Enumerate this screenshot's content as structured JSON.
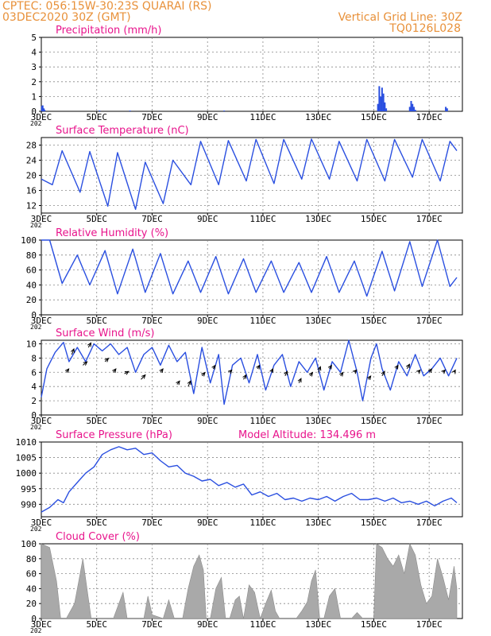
{
  "header": {
    "station": "CPTEC:   056:15W-30:23S   QUARAI (RS)",
    "run": "03DEC2020 30Z (GMT)",
    "grid_note": "Vertical Grid Line: 30Z",
    "model_code": "TQ0126L028"
  },
  "colors": {
    "header": "#e8913a",
    "panel_title": "#e8148c",
    "series": "#2a4fe0",
    "cloud_fill": "#a9a9a9",
    "wind_arrow": "#000000",
    "grid": "#888888"
  },
  "x_axis": {
    "range": [
      3,
      18.2
    ],
    "tick_labels": [
      {
        "x": 3,
        "label": "3DEC"
      },
      {
        "x": 5,
        "label": "5DEC"
      },
      {
        "x": 7,
        "label": "7DEC"
      },
      {
        "x": 9,
        "label": "9DEC"
      },
      {
        "x": 11,
        "label": "11DEC"
      },
      {
        "x": 13,
        "label": "13DEC"
      },
      {
        "x": 15,
        "label": "15DEC"
      },
      {
        "x": 17,
        "label": "17DEC"
      }
    ],
    "year_fragment": "202"
  },
  "chart_data": [
    {
      "id": "precip",
      "type": "bar",
      "title": "Precipitation (mm/h)",
      "ylim": [
        0,
        5
      ],
      "yticks": [
        0,
        1,
        2,
        3,
        4,
        5
      ],
      "grid": true,
      "points": [
        [
          3.02,
          0.35
        ],
        [
          3.05,
          0.4
        ],
        [
          3.09,
          0.2
        ],
        [
          3.12,
          0.1
        ],
        [
          5.1,
          0.05
        ],
        [
          6.2,
          0.05
        ],
        [
          9.6,
          0.05
        ],
        [
          15.15,
          0.5
        ],
        [
          15.2,
          1.7
        ],
        [
          15.25,
          1.0
        ],
        [
          15.3,
          1.6
        ],
        [
          15.35,
          1.2
        ],
        [
          15.4,
          0.6
        ],
        [
          15.45,
          0.2
        ],
        [
          16.3,
          0.3
        ],
        [
          16.35,
          0.7
        ],
        [
          16.4,
          0.5
        ],
        [
          16.45,
          0.3
        ],
        [
          16.5,
          0.1
        ],
        [
          17.6,
          0.3
        ],
        [
          17.65,
          0.2
        ]
      ]
    },
    {
      "id": "temp",
      "type": "line",
      "title": "Surface Temperature (nC)",
      "ylim": [
        10,
        30
      ],
      "yticks": [
        12,
        16,
        20,
        24,
        28
      ],
      "grid": true,
      "points": [
        [
          3.0,
          19.0
        ],
        [
          3.4,
          17.5
        ],
        [
          3.75,
          26.5
        ],
        [
          4.4,
          15.5
        ],
        [
          4.75,
          26.3
        ],
        [
          5.4,
          11.8
        ],
        [
          5.75,
          26.0
        ],
        [
          6.4,
          11.0
        ],
        [
          6.75,
          23.5
        ],
        [
          7.4,
          12.5
        ],
        [
          7.75,
          24.0
        ],
        [
          8.4,
          17.5
        ],
        [
          8.75,
          29.0
        ],
        [
          9.4,
          17.5
        ],
        [
          9.75,
          29.2
        ],
        [
          10.4,
          18.5
        ],
        [
          10.75,
          29.5
        ],
        [
          11.4,
          17.8
        ],
        [
          11.75,
          29.5
        ],
        [
          12.4,
          19.0
        ],
        [
          12.75,
          29.6
        ],
        [
          13.4,
          19.0
        ],
        [
          13.75,
          29.0
        ],
        [
          14.4,
          18.5
        ],
        [
          14.75,
          29.5
        ],
        [
          15.4,
          18.5
        ],
        [
          15.75,
          29.5
        ],
        [
          16.4,
          19.5
        ],
        [
          16.75,
          29.5
        ],
        [
          17.4,
          18.5
        ],
        [
          17.75,
          29.0
        ],
        [
          18.0,
          26.5
        ]
      ]
    },
    {
      "id": "rh",
      "type": "line",
      "title": "Relative Humidity (%)",
      "ylim": [
        0,
        100
      ],
      "yticks": [
        0,
        20,
        40,
        60,
        80,
        100
      ],
      "grid": true,
      "points": [
        [
          3.0,
          100
        ],
        [
          3.3,
          100
        ],
        [
          3.75,
          42
        ],
        [
          4.3,
          80
        ],
        [
          4.75,
          40
        ],
        [
          5.3,
          86
        ],
        [
          5.75,
          28
        ],
        [
          6.3,
          88
        ],
        [
          6.75,
          30
        ],
        [
          7.3,
          82
        ],
        [
          7.75,
          28
        ],
        [
          8.3,
          72
        ],
        [
          8.75,
          30
        ],
        [
          9.3,
          78
        ],
        [
          9.75,
          28
        ],
        [
          10.3,
          75
        ],
        [
          10.75,
          30
        ],
        [
          11.3,
          72
        ],
        [
          11.75,
          30
        ],
        [
          12.3,
          70
        ],
        [
          12.75,
          30
        ],
        [
          13.3,
          78
        ],
        [
          13.75,
          30
        ],
        [
          14.3,
          72
        ],
        [
          14.75,
          25
        ],
        [
          15.3,
          85
        ],
        [
          15.75,
          32
        ],
        [
          16.3,
          98
        ],
        [
          16.75,
          38
        ],
        [
          17.3,
          100
        ],
        [
          17.75,
          38
        ],
        [
          18.0,
          50
        ]
      ]
    },
    {
      "id": "wind",
      "type": "line",
      "title": "Surface Wind (m/s)",
      "ylim": [
        0,
        10.5
      ],
      "yticks": [
        0,
        2,
        4,
        6,
        8,
        10
      ],
      "grid": true,
      "points": [
        [
          3.0,
          2.5
        ],
        [
          3.2,
          6.5
        ],
        [
          3.5,
          8.8
        ],
        [
          3.8,
          10.2
        ],
        [
          4.0,
          7.5
        ],
        [
          4.3,
          9.5
        ],
        [
          4.6,
          7.5
        ],
        [
          4.9,
          10.0
        ],
        [
          5.2,
          9.0
        ],
        [
          5.5,
          10.0
        ],
        [
          5.8,
          8.5
        ],
        [
          6.1,
          9.5
        ],
        [
          6.4,
          6.0
        ],
        [
          6.7,
          8.5
        ],
        [
          7.0,
          9.5
        ],
        [
          7.3,
          7.0
        ],
        [
          7.6,
          9.8
        ],
        [
          7.9,
          7.5
        ],
        [
          8.2,
          8.8
        ],
        [
          8.5,
          3.0
        ],
        [
          8.8,
          9.5
        ],
        [
          9.1,
          4.5
        ],
        [
          9.4,
          8.5
        ],
        [
          9.6,
          1.5
        ],
        [
          9.9,
          7.0
        ],
        [
          10.2,
          8.0
        ],
        [
          10.5,
          4.5
        ],
        [
          10.8,
          8.5
        ],
        [
          11.1,
          3.5
        ],
        [
          11.4,
          7.0
        ],
        [
          11.7,
          8.5
        ],
        [
          12.0,
          4.0
        ],
        [
          12.3,
          7.5
        ],
        [
          12.6,
          6.0
        ],
        [
          12.9,
          8.0
        ],
        [
          13.2,
          3.5
        ],
        [
          13.5,
          7.5
        ],
        [
          13.8,
          6.0
        ],
        [
          14.1,
          10.5
        ],
        [
          14.4,
          6.0
        ],
        [
          14.6,
          2.0
        ],
        [
          14.9,
          8.0
        ],
        [
          15.1,
          10.0
        ],
        [
          15.3,
          6.5
        ],
        [
          15.6,
          3.5
        ],
        [
          15.9,
          7.5
        ],
        [
          16.2,
          5.5
        ],
        [
          16.5,
          8.5
        ],
        [
          16.8,
          5.5
        ],
        [
          17.1,
          6.5
        ],
        [
          17.4,
          8.0
        ],
        [
          17.7,
          5.5
        ],
        [
          18.0,
          8.0
        ]
      ],
      "vectors": [
        [
          3.9,
          6.0,
          0.6,
          0.3
        ],
        [
          4.1,
          8.5,
          0.5,
          0.5
        ],
        [
          4.5,
          7.0,
          1.0,
          0.3
        ],
        [
          4.7,
          9.5,
          0.6,
          0.4
        ],
        [
          5.3,
          7.5,
          0.8,
          0.3
        ],
        [
          5.6,
          6.0,
          0.6,
          0.3
        ],
        [
          6.0,
          5.8,
          1.0,
          0.2
        ],
        [
          6.6,
          5.0,
          1.0,
          0.4
        ],
        [
          7.3,
          6.0,
          0.6,
          0.3
        ],
        [
          7.9,
          4.3,
          0.6,
          0.3
        ],
        [
          8.3,
          4.0,
          0.6,
          0.5
        ],
        [
          8.8,
          5.5,
          0.7,
          0.3
        ],
        [
          9.2,
          6.5,
          0.5,
          0.3
        ],
        [
          9.8,
          6.0,
          0.5,
          0.2
        ],
        [
          10.3,
          5.0,
          0.6,
          0.4
        ],
        [
          10.8,
          6.5,
          0.5,
          0.3
        ],
        [
          11.3,
          6.0,
          0.4,
          0.3
        ],
        [
          11.8,
          5.5,
          0.5,
          0.4
        ],
        [
          12.3,
          4.5,
          0.5,
          0.4
        ],
        [
          12.7,
          5.5,
          0.6,
          0.3
        ],
        [
          13.0,
          6.0,
          0.5,
          0.5
        ],
        [
          13.4,
          6.5,
          0.5,
          0.3
        ],
        [
          13.8,
          5.5,
          0.6,
          0.3
        ],
        [
          14.3,
          6.0,
          0.5,
          0.2
        ],
        [
          14.8,
          5.0,
          0.6,
          0.3
        ],
        [
          15.3,
          5.5,
          0.6,
          0.4
        ],
        [
          15.8,
          6.5,
          0.5,
          0.3
        ],
        [
          16.2,
          6.5,
          0.6,
          0.4
        ],
        [
          16.6,
          6.0,
          0.5,
          0.2
        ],
        [
          17.0,
          6.0,
          0.6,
          0.3
        ],
        [
          17.5,
          6.0,
          0.5,
          0.2
        ],
        [
          17.9,
          6.0,
          0.3,
          0.2
        ]
      ]
    },
    {
      "id": "pressure",
      "type": "line",
      "title": "Surface Pressure (hPa)",
      "note": "Model Altitude: 134.496 m",
      "ylim": [
        986,
        1010
      ],
      "yticks": [
        990,
        995,
        1000,
        1005,
        1010
      ],
      "grid": true,
      "points": [
        [
          3.0,
          987.5
        ],
        [
          3.3,
          989.0
        ],
        [
          3.6,
          991.5
        ],
        [
          3.8,
          990.5
        ],
        [
          4.0,
          994.0
        ],
        [
          4.3,
          997.0
        ],
        [
          4.6,
          1000.0
        ],
        [
          4.9,
          1002.0
        ],
        [
          5.2,
          1006.0
        ],
        [
          5.5,
          1007.5
        ],
        [
          5.8,
          1008.5
        ],
        [
          6.1,
          1007.5
        ],
        [
          6.4,
          1008.0
        ],
        [
          6.7,
          1006.0
        ],
        [
          7.0,
          1006.5
        ],
        [
          7.3,
          1004.0
        ],
        [
          7.6,
          1002.0
        ],
        [
          7.9,
          1002.5
        ],
        [
          8.2,
          1000.0
        ],
        [
          8.5,
          999.0
        ],
        [
          8.8,
          997.5
        ],
        [
          9.1,
          998.0
        ],
        [
          9.4,
          996.0
        ],
        [
          9.7,
          997.0
        ],
        [
          10.0,
          995.5
        ],
        [
          10.3,
          996.5
        ],
        [
          10.6,
          993.0
        ],
        [
          10.9,
          994.0
        ],
        [
          11.2,
          992.5
        ],
        [
          11.5,
          993.5
        ],
        [
          11.8,
          991.5
        ],
        [
          12.1,
          992.0
        ],
        [
          12.4,
          991.0
        ],
        [
          12.7,
          992.0
        ],
        [
          13.0,
          991.5
        ],
        [
          13.3,
          992.5
        ],
        [
          13.6,
          991.0
        ],
        [
          13.9,
          992.5
        ],
        [
          14.2,
          993.5
        ],
        [
          14.5,
          991.5
        ],
        [
          14.8,
          991.5
        ],
        [
          15.1,
          992.0
        ],
        [
          15.4,
          991.0
        ],
        [
          15.7,
          992.0
        ],
        [
          16.0,
          990.5
        ],
        [
          16.3,
          991.0
        ],
        [
          16.6,
          990.0
        ],
        [
          16.9,
          991.0
        ],
        [
          17.2,
          989.5
        ],
        [
          17.5,
          991.0
        ],
        [
          17.8,
          992.0
        ],
        [
          18.0,
          990.5
        ]
      ]
    },
    {
      "id": "cloud",
      "type": "area",
      "title": "Cloud Cover (%)",
      "ylim": [
        0,
        100
      ],
      "yticks": [
        0,
        20,
        40,
        60,
        80,
        100
      ],
      "grid": true,
      "points": [
        [
          3.0,
          100
        ],
        [
          3.3,
          95
        ],
        [
          3.55,
          50
        ],
        [
          3.7,
          0
        ],
        [
          3.9,
          0
        ],
        [
          4.2,
          20
        ],
        [
          4.35,
          50
        ],
        [
          4.5,
          80
        ],
        [
          4.65,
          40
        ],
        [
          4.8,
          0
        ],
        [
          5.6,
          0
        ],
        [
          5.8,
          20
        ],
        [
          5.95,
          35
        ],
        [
          6.1,
          0
        ],
        [
          6.7,
          0
        ],
        [
          6.85,
          30
        ],
        [
          7.0,
          5
        ],
        [
          7.4,
          0
        ],
        [
          7.6,
          25
        ],
        [
          7.8,
          0
        ],
        [
          8.1,
          0
        ],
        [
          8.3,
          40
        ],
        [
          8.5,
          70
        ],
        [
          8.7,
          85
        ],
        [
          8.85,
          65
        ],
        [
          8.95,
          0
        ],
        [
          9.1,
          0
        ],
        [
          9.3,
          40
        ],
        [
          9.5,
          55
        ],
        [
          9.65,
          0
        ],
        [
          9.8,
          0
        ],
        [
          10.0,
          25
        ],
        [
          10.15,
          30
        ],
        [
          10.3,
          0
        ],
        [
          10.5,
          45
        ],
        [
          10.7,
          35
        ],
        [
          10.9,
          0
        ],
        [
          11.1,
          20
        ],
        [
          11.3,
          38
        ],
        [
          11.45,
          10
        ],
        [
          11.6,
          0
        ],
        [
          12.2,
          0
        ],
        [
          12.4,
          10
        ],
        [
          12.6,
          22
        ],
        [
          12.75,
          50
        ],
        [
          12.9,
          65
        ],
        [
          13.05,
          0
        ],
        [
          13.2,
          0
        ],
        [
          13.4,
          30
        ],
        [
          13.6,
          40
        ],
        [
          13.8,
          0
        ],
        [
          14.2,
          0
        ],
        [
          14.4,
          8
        ],
        [
          14.6,
          0
        ],
        [
          15.0,
          0
        ],
        [
          15.1,
          100
        ],
        [
          15.3,
          95
        ],
        [
          15.5,
          80
        ],
        [
          15.7,
          70
        ],
        [
          15.9,
          85
        ],
        [
          16.1,
          60
        ],
        [
          16.3,
          100
        ],
        [
          16.5,
          85
        ],
        [
          16.7,
          45
        ],
        [
          16.9,
          20
        ],
        [
          17.1,
          30
        ],
        [
          17.3,
          80
        ],
        [
          17.5,
          55
        ],
        [
          17.7,
          25
        ],
        [
          17.9,
          70
        ],
        [
          18.0,
          40
        ]
      ]
    }
  ]
}
